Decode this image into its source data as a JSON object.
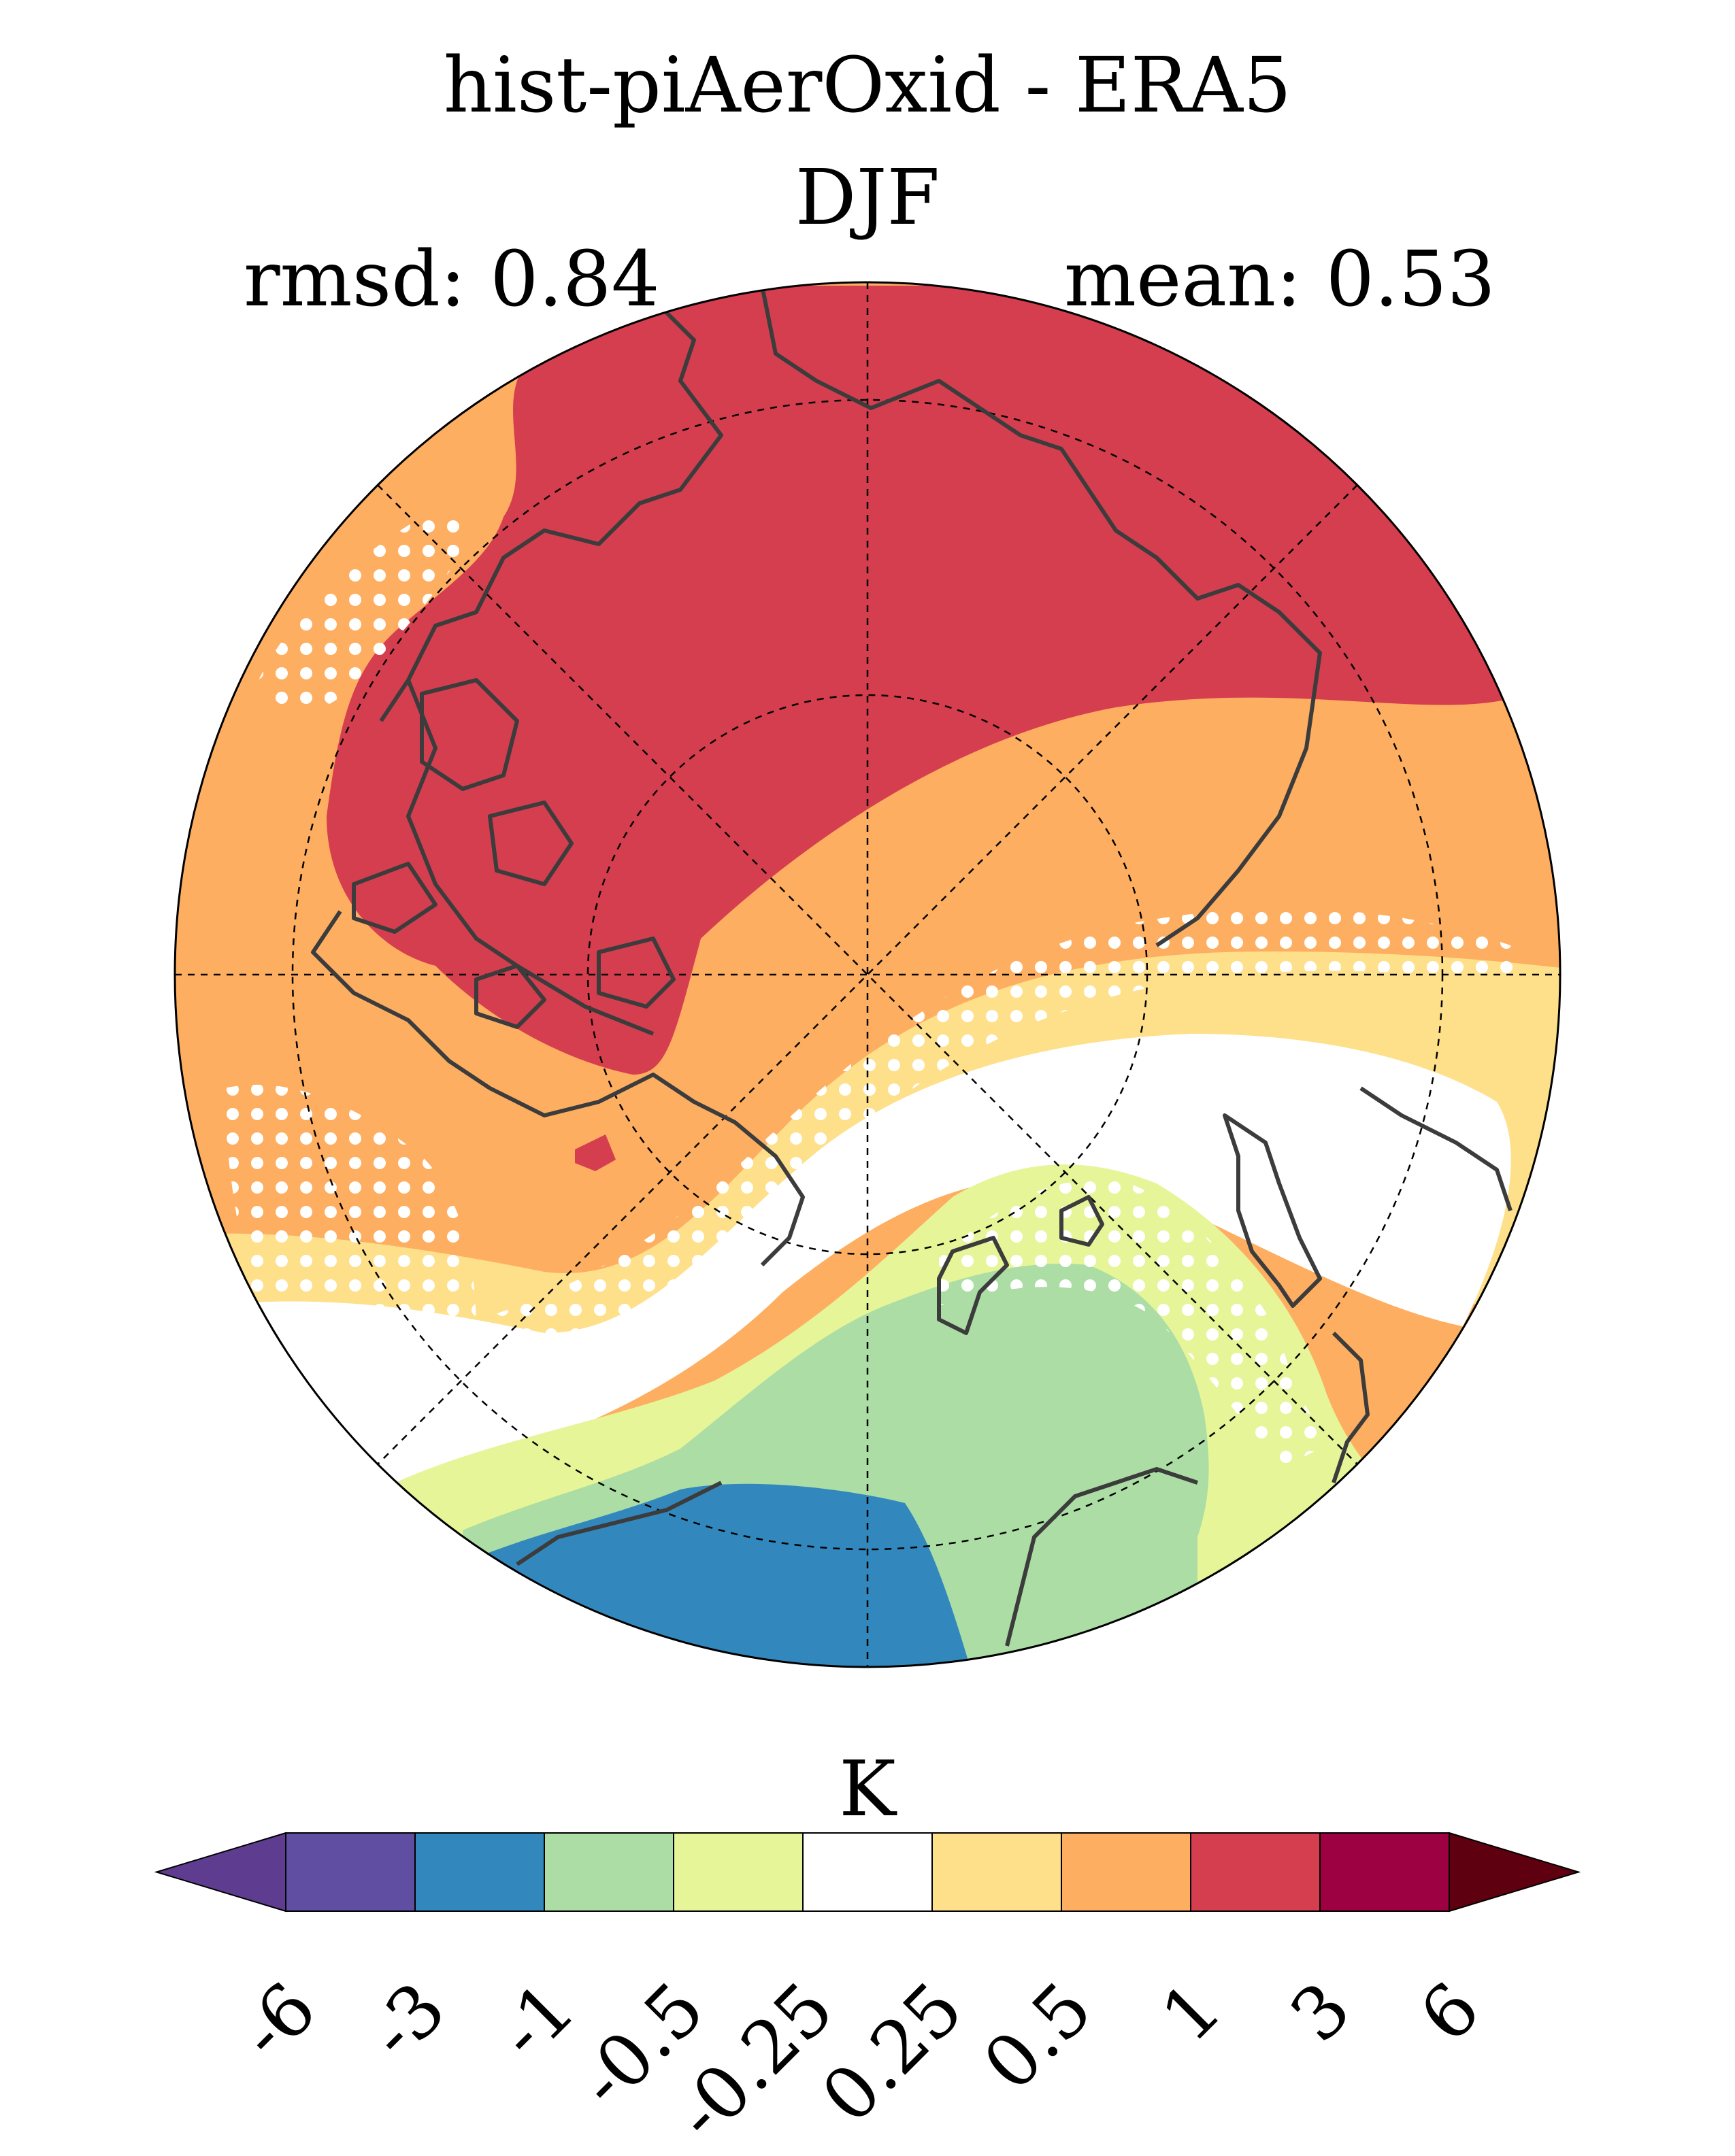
{
  "title": "hist-piAerOxid - ERA5",
  "subtitle": "DJF",
  "stats": {
    "rmsd": "rmsd: 0.84",
    "mean": "mean: 0.53"
  },
  "colorbar": {
    "unit_label": "K",
    "tick_labels": [
      "-6",
      "-3",
      "-1",
      "-0.5",
      "-0.25",
      "0.25",
      "0.5",
      "1",
      "3",
      "6"
    ],
    "colors": [
      "#5e3c8f",
      "#5f4ea2",
      "#3288bd",
      "#abdda4",
      "#e6f598",
      "#ffffff",
      "#fee08b",
      "#fdae61",
      "#d53e4f",
      "#9e0142",
      "#5e0010"
    ]
  },
  "map": {
    "projection": "north-polar-stereographic",
    "region_colors": {
      "strong_warm": "#d53e4f",
      "warm": "#fdae61",
      "weak_warm": "#fee08b",
      "neutral": "#ffffff",
      "weak_cool": "#e6f598",
      "cool": "#abdda4",
      "strong_cool": "#3288bd"
    },
    "coastline_color": "#3c3c3c",
    "stipple_color": "#ffffff"
  }
}
